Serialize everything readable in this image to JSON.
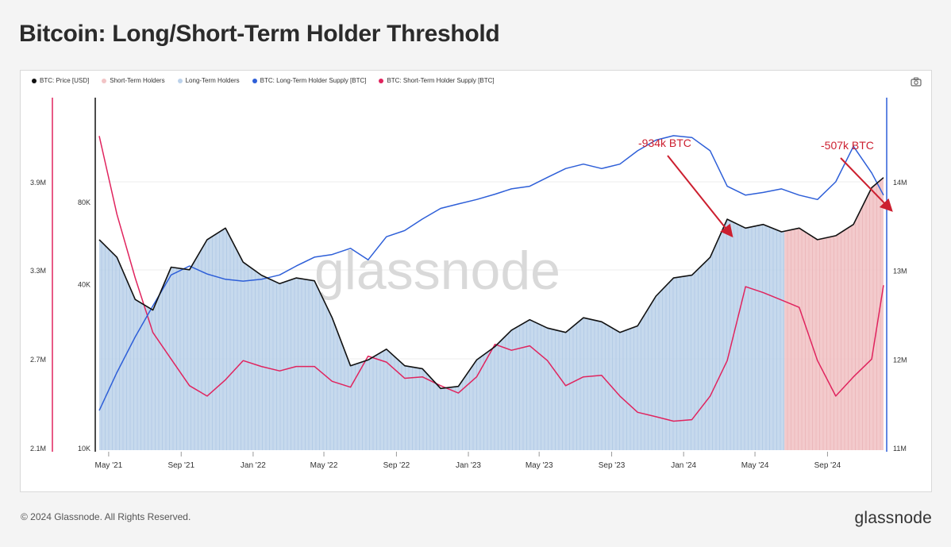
{
  "page": {
    "title": "Bitcoin: Long/Short-Term Holder Threshold",
    "copyright": "© 2024 Glassnode. All Rights Reserved.",
    "logo": "glassnode",
    "watermark": "glassnode"
  },
  "colors": {
    "price": "#111111",
    "sth_area": "#f2c4c6",
    "lth_area": "#bcd2ea",
    "lth_supply": "#2e5fd8",
    "sth_supply": "#e0245e",
    "annotation": "#cc1f2f"
  },
  "chart_data": {
    "type": "line",
    "legend": [
      {
        "name": "BTC: Price [USD]",
        "color": "#111111"
      },
      {
        "name": "Short-Term Holders",
        "color": "#f2c4c6"
      },
      {
        "name": "Long-Term Holders",
        "color": "#bcd2ea"
      },
      {
        "name": "BTC: Long-Term Holder Supply [BTC]",
        "color": "#2e5fd8"
      },
      {
        "name": "BTC: Short-Term Holder Supply [BTC]",
        "color": "#e0245e"
      }
    ],
    "x_ticks": [
      "May '21",
      "Sep '21",
      "Jan '22",
      "May '22",
      "Sep '22",
      "Jan '23",
      "May '23",
      "Sep '23",
      "Jan '24",
      "May '24",
      "Sep '24"
    ],
    "price_axis_ticks": [
      "80K",
      "40K",
      "10K"
    ],
    "sth_axis_ticks": [
      "3.9M",
      "3.3M",
      "2.7M",
      "2.1M"
    ],
    "lth_axis_ticks": [
      "14M",
      "13M",
      "12M",
      "11M"
    ],
    "x": [
      "2021-04-15",
      "2021-05-15",
      "2021-06-15",
      "2021-07-15",
      "2021-08-15",
      "2021-09-15",
      "2021-10-15",
      "2021-11-15",
      "2021-12-15",
      "2022-01-15",
      "2022-02-15",
      "2022-03-15",
      "2022-04-15",
      "2022-05-15",
      "2022-06-15",
      "2022-07-15",
      "2022-08-15",
      "2022-09-15",
      "2022-10-15",
      "2022-11-15",
      "2022-12-15",
      "2023-01-15",
      "2023-02-15",
      "2023-03-15",
      "2023-04-15",
      "2023-05-15",
      "2023-06-15",
      "2023-07-15",
      "2023-08-15",
      "2023-09-15",
      "2023-10-15",
      "2023-11-15",
      "2023-12-15",
      "2024-01-15",
      "2024-02-15",
      "2024-03-15",
      "2024-04-15",
      "2024-05-15",
      "2024-06-15",
      "2024-07-15",
      "2024-08-15",
      "2024-09-15",
      "2024-10-15",
      "2024-11-15",
      "2024-12-05"
    ],
    "series": [
      {
        "name": "BTC: Price [USD]",
        "axis": "price",
        "values": [
          58000,
          50000,
          35000,
          32000,
          46000,
          45000,
          58000,
          64000,
          48000,
          43000,
          40000,
          42000,
          41000,
          30000,
          20000,
          21000,
          23000,
          20000,
          19500,
          16500,
          16800,
          21000,
          23500,
          27000,
          29500,
          27500,
          26500,
          30000,
          29000,
          26500,
          28000,
          36000,
          42000,
          43000,
          50000,
          69000,
          64000,
          66000,
          62000,
          64000,
          58000,
          60000,
          66000,
          90000,
          98000
        ]
      },
      {
        "name": "BTC: Long-Term Holder Supply [BTC]",
        "axis": "lth",
        "values": [
          11420000,
          11850000,
          12250000,
          12600000,
          12950000,
          13050000,
          12960000,
          12900000,
          12880000,
          12900000,
          12950000,
          13050000,
          13150000,
          13180000,
          13250000,
          13120000,
          13380000,
          13450000,
          13580000,
          13700000,
          13750000,
          13800000,
          13860000,
          13920000,
          13950000,
          14050000,
          14150000,
          14200000,
          14150000,
          14200000,
          14350000,
          14470000,
          14520000,
          14500000,
          14350000,
          13950000,
          13850000,
          13880000,
          13920000,
          13850000,
          13800000,
          14000000,
          14400000,
          14100000,
          13850000
        ]
      },
      {
        "name": "BTC: Short-Term Holder Supply [BTC]",
        "axis": "sth",
        "values": [
          4210000,
          3680000,
          3250000,
          2880000,
          2700000,
          2520000,
          2450000,
          2560000,
          2690000,
          2650000,
          2620000,
          2650000,
          2650000,
          2550000,
          2510000,
          2720000,
          2680000,
          2570000,
          2580000,
          2520000,
          2470000,
          2580000,
          2800000,
          2760000,
          2790000,
          2690000,
          2520000,
          2580000,
          2590000,
          2450000,
          2340000,
          2310000,
          2280000,
          2290000,
          2450000,
          2690000,
          3190000,
          3150000,
          3100000,
          3050000,
          2690000,
          2450000,
          2580000,
          2700000,
          3200000
        ]
      }
    ],
    "annotations": [
      {
        "text": "-934k BTC"
      },
      {
        "text": "-507k BTC"
      }
    ]
  }
}
